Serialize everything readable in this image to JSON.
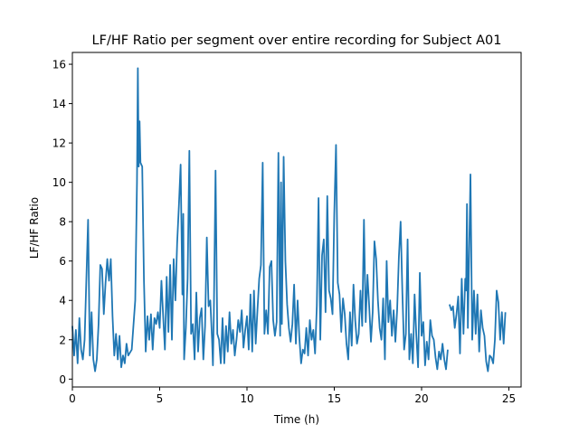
{
  "chart_data": {
    "type": "line",
    "title": "LF/HF Ratio per segment over entire recording for Subject A01",
    "xlabel": "Time (h)",
    "ylabel": "LF/HF Ratio",
    "xlim": [
      0,
      25.7
    ],
    "ylim": [
      -0.4,
      16.6
    ],
    "xticks": [
      0,
      5,
      10,
      15,
      20,
      25
    ],
    "yticks": [
      0,
      2,
      4,
      6,
      8,
      10,
      12,
      14,
      16
    ],
    "grid": false,
    "series_color": "#1f77b4",
    "series": [
      {
        "name": "LF/HF Ratio",
        "segments": [
          [
            [
              0.0,
              2.7
            ],
            [
              0.1,
              1.2
            ],
            [
              0.2,
              2.5
            ],
            [
              0.3,
              0.8
            ],
            [
              0.4,
              3.1
            ],
            [
              0.5,
              1.5
            ],
            [
              0.6,
              1.0
            ],
            [
              0.7,
              2.0
            ],
            [
              0.9,
              8.1
            ],
            [
              1.0,
              1.2
            ],
            [
              1.1,
              3.4
            ],
            [
              1.2,
              1.0
            ],
            [
              1.3,
              0.4
            ],
            [
              1.4,
              1.0
            ],
            [
              1.5,
              2.8
            ],
            [
              1.6,
              5.8
            ],
            [
              1.7,
              5.6
            ],
            [
              1.8,
              3.3
            ],
            [
              1.9,
              4.9
            ],
            [
              2.0,
              6.1
            ],
            [
              2.1,
              5.0
            ],
            [
              2.2,
              6.1
            ],
            [
              2.3,
              3.2
            ],
            [
              2.4,
              1.2
            ],
            [
              2.5,
              2.3
            ],
            [
              2.6,
              1.0
            ],
            [
              2.7,
              2.2
            ],
            [
              2.8,
              0.6
            ],
            [
              2.9,
              1.2
            ],
            [
              3.0,
              0.8
            ],
            [
              3.1,
              1.8
            ],
            [
              3.2,
              1.2
            ],
            [
              3.4,
              1.5
            ],
            [
              3.6,
              4.0
            ],
            [
              3.7,
              10.0
            ],
            [
              3.75,
              15.8
            ],
            [
              3.8,
              10.8
            ],
            [
              3.85,
              13.1
            ],
            [
              3.9,
              11.0
            ],
            [
              4.0,
              10.8
            ],
            [
              4.1,
              5.0
            ],
            [
              4.2,
              1.4
            ],
            [
              4.3,
              3.2
            ],
            [
              4.4,
              2.0
            ],
            [
              4.5,
              3.3
            ],
            [
              4.6,
              1.5
            ],
            [
              4.7,
              3.1
            ],
            [
              4.8,
              2.8
            ],
            [
              4.9,
              3.4
            ],
            [
              5.0,
              2.6
            ],
            [
              5.1,
              5.0
            ],
            [
              5.2,
              3.2
            ],
            [
              5.3,
              1.5
            ],
            [
              5.4,
              5.2
            ],
            [
              5.5,
              2.4
            ],
            [
              5.6,
              5.8
            ],
            [
              5.7,
              2.0
            ],
            [
              5.8,
              6.1
            ],
            [
              5.9,
              4.0
            ],
            [
              6.0,
              6.9
            ],
            [
              6.1,
              8.8
            ],
            [
              6.2,
              10.9
            ],
            [
              6.3,
              4.3
            ],
            [
              6.35,
              8.4
            ],
            [
              6.4,
              1.0
            ],
            [
              6.5,
              2.6
            ],
            [
              6.6,
              5.1
            ],
            [
              6.7,
              11.6
            ],
            [
              6.8,
              2.3
            ],
            [
              6.9,
              2.8
            ],
            [
              7.0,
              1.0
            ],
            [
              7.1,
              4.4
            ],
            [
              7.2,
              1.4
            ],
            [
              7.3,
              3.1
            ],
            [
              7.4,
              3.6
            ],
            [
              7.5,
              1.0
            ],
            [
              7.6,
              2.7
            ],
            [
              7.7,
              7.2
            ],
            [
              7.8,
              3.7
            ],
            [
              7.9,
              4.0
            ],
            [
              8.0,
              2.0
            ],
            [
              8.05,
              0.7
            ],
            [
              8.1,
              3.2
            ],
            [
              8.2,
              10.6
            ],
            [
              8.3,
              2.3
            ],
            [
              8.4,
              2.0
            ],
            [
              8.5,
              0.8
            ],
            [
              8.6,
              3.1
            ],
            [
              8.7,
              0.8
            ],
            [
              8.8,
              2.7
            ],
            [
              8.9,
              1.4
            ],
            [
              9.0,
              3.4
            ],
            [
              9.1,
              1.8
            ],
            [
              9.2,
              2.5
            ],
            [
              9.3,
              1.2
            ],
            [
              9.4,
              2.0
            ],
            [
              9.5,
              3.0
            ],
            [
              9.6,
              2.4
            ],
            [
              9.7,
              3.5
            ],
            [
              9.8,
              1.6
            ],
            [
              9.9,
              2.5
            ],
            [
              10.0,
              3.2
            ],
            [
              10.1,
              1.5
            ],
            [
              10.2,
              4.3
            ],
            [
              10.3,
              1.4
            ],
            [
              10.4,
              4.5
            ],
            [
              10.5,
              1.8
            ],
            [
              10.6,
              3.5
            ],
            [
              10.7,
              5.1
            ],
            [
              10.8,
              5.8
            ],
            [
              10.9,
              11.0
            ],
            [
              11.0,
              2.3
            ],
            [
              11.1,
              3.5
            ],
            [
              11.2,
              2.3
            ],
            [
              11.3,
              5.7
            ],
            [
              11.4,
              6.0
            ],
            [
              11.5,
              3.0
            ],
            [
              11.6,
              2.2
            ],
            [
              11.7,
              2.9
            ],
            [
              11.8,
              11.5
            ],
            [
              11.9,
              2.2
            ],
            [
              11.95,
              10.0
            ],
            [
              12.0,
              2.8
            ],
            [
              12.1,
              11.3
            ],
            [
              12.2,
              6.0
            ],
            [
              12.3,
              3.8
            ],
            [
              12.4,
              2.6
            ],
            [
              12.5,
              1.9
            ],
            [
              12.6,
              2.8
            ],
            [
              12.7,
              4.8
            ],
            [
              12.8,
              1.8
            ],
            [
              12.9,
              4.0
            ],
            [
              13.0,
              2.1
            ],
            [
              13.1,
              0.8
            ],
            [
              13.2,
              1.5
            ],
            [
              13.3,
              1.3
            ],
            [
              13.4,
              2.6
            ],
            [
              13.5,
              1.2
            ],
            [
              13.6,
              3.0
            ],
            [
              13.7,
              2.0
            ],
            [
              13.8,
              2.5
            ],
            [
              13.9,
              1.3
            ],
            [
              14.0,
              3.7
            ],
            [
              14.1,
              9.2
            ],
            [
              14.2,
              2.0
            ],
            [
              14.3,
              6.3
            ],
            [
              14.4,
              7.1
            ],
            [
              14.5,
              3.4
            ],
            [
              14.6,
              9.3
            ],
            [
              14.7,
              4.5
            ],
            [
              14.8,
              4.1
            ],
            [
              14.9,
              3.3
            ],
            [
              15.0,
              8.4
            ],
            [
              15.1,
              11.9
            ],
            [
              15.2,
              4.9
            ],
            [
              15.3,
              4.3
            ],
            [
              15.4,
              2.4
            ],
            [
              15.5,
              4.1
            ],
            [
              15.6,
              3.3
            ],
            [
              15.7,
              1.8
            ],
            [
              15.8,
              1.0
            ],
            [
              15.9,
              3.4
            ],
            [
              16.0,
              1.7
            ],
            [
              16.1,
              4.8
            ],
            [
              16.2,
              3.0
            ],
            [
              16.3,
              1.8
            ],
            [
              16.4,
              2.3
            ],
            [
              16.5,
              4.5
            ],
            [
              16.6,
              2.7
            ],
            [
              16.7,
              8.1
            ],
            [
              16.8,
              2.9
            ],
            [
              16.9,
              5.3
            ],
            [
              17.0,
              3.7
            ],
            [
              17.1,
              1.9
            ],
            [
              17.2,
              3.4
            ],
            [
              17.3,
              7.0
            ],
            [
              17.4,
              6.1
            ],
            [
              17.5,
              4.0
            ],
            [
              17.6,
              2.6
            ],
            [
              17.7,
              2.0
            ],
            [
              17.8,
              4.1
            ],
            [
              17.9,
              1.0
            ],
            [
              18.0,
              6.0
            ],
            [
              18.1,
              2.9
            ],
            [
              18.2,
              4.0
            ],
            [
              18.3,
              2.2
            ],
            [
              18.4,
              3.5
            ],
            [
              18.5,
              1.9
            ],
            [
              18.6,
              3.5
            ],
            [
              18.7,
              6.2
            ],
            [
              18.8,
              8.0
            ],
            [
              18.9,
              4.4
            ],
            [
              19.0,
              1.5
            ],
            [
              19.1,
              2.3
            ],
            [
              19.2,
              7.1
            ],
            [
              19.3,
              1.0
            ],
            [
              19.4,
              2.3
            ],
            [
              19.5,
              0.8
            ],
            [
              19.6,
              4.3
            ],
            [
              19.7,
              2.2
            ],
            [
              19.8,
              0.6
            ],
            [
              19.9,
              5.4
            ],
            [
              20.0,
              2.2
            ],
            [
              20.1,
              2.9
            ],
            [
              20.2,
              0.7
            ],
            [
              20.3,
              1.9
            ],
            [
              20.4,
              1.0
            ],
            [
              20.5,
              3.0
            ],
            [
              20.6,
              2.2
            ],
            [
              20.7,
              2.0
            ],
            [
              20.8,
              1.1
            ],
            [
              20.9,
              0.5
            ],
            [
              21.0,
              1.4
            ],
            [
              21.1,
              1.0
            ],
            [
              21.2,
              1.8
            ],
            [
              21.3,
              1.0
            ],
            [
              21.4,
              0.5
            ],
            [
              21.5,
              1.5
            ]
          ],
          [
            [
              21.6,
              3.8
            ],
            [
              21.7,
              3.5
            ],
            [
              21.8,
              3.7
            ],
            [
              21.9,
              2.6
            ],
            [
              22.0,
              3.3
            ],
            [
              22.1,
              4.2
            ],
            [
              22.2,
              1.3
            ],
            [
              22.3,
              5.1
            ],
            [
              22.4,
              2.3
            ],
            [
              22.5,
              5.1
            ],
            [
              22.55,
              4.5
            ],
            [
              22.6,
              8.9
            ],
            [
              22.65,
              2.6
            ],
            [
              22.7,
              5.1
            ],
            [
              22.8,
              10.4
            ],
            [
              22.9,
              2.0
            ],
            [
              23.0,
              4.5
            ],
            [
              23.1,
              2.3
            ],
            [
              23.2,
              4.3
            ],
            [
              23.3,
              1.4
            ],
            [
              23.4,
              3.5
            ],
            [
              23.5,
              2.6
            ],
            [
              23.6,
              2.2
            ],
            [
              23.7,
              0.9
            ],
            [
              23.8,
              0.4
            ],
            [
              23.9,
              1.2
            ],
            [
              24.0,
              1.1
            ],
            [
              24.1,
              0.8
            ],
            [
              24.2,
              2.0
            ],
            [
              24.3,
              4.5
            ],
            [
              24.4,
              3.9
            ],
            [
              24.5,
              2.0
            ],
            [
              24.6,
              3.4
            ],
            [
              24.7,
              1.8
            ],
            [
              24.8,
              3.4
            ]
          ]
        ]
      }
    ]
  }
}
